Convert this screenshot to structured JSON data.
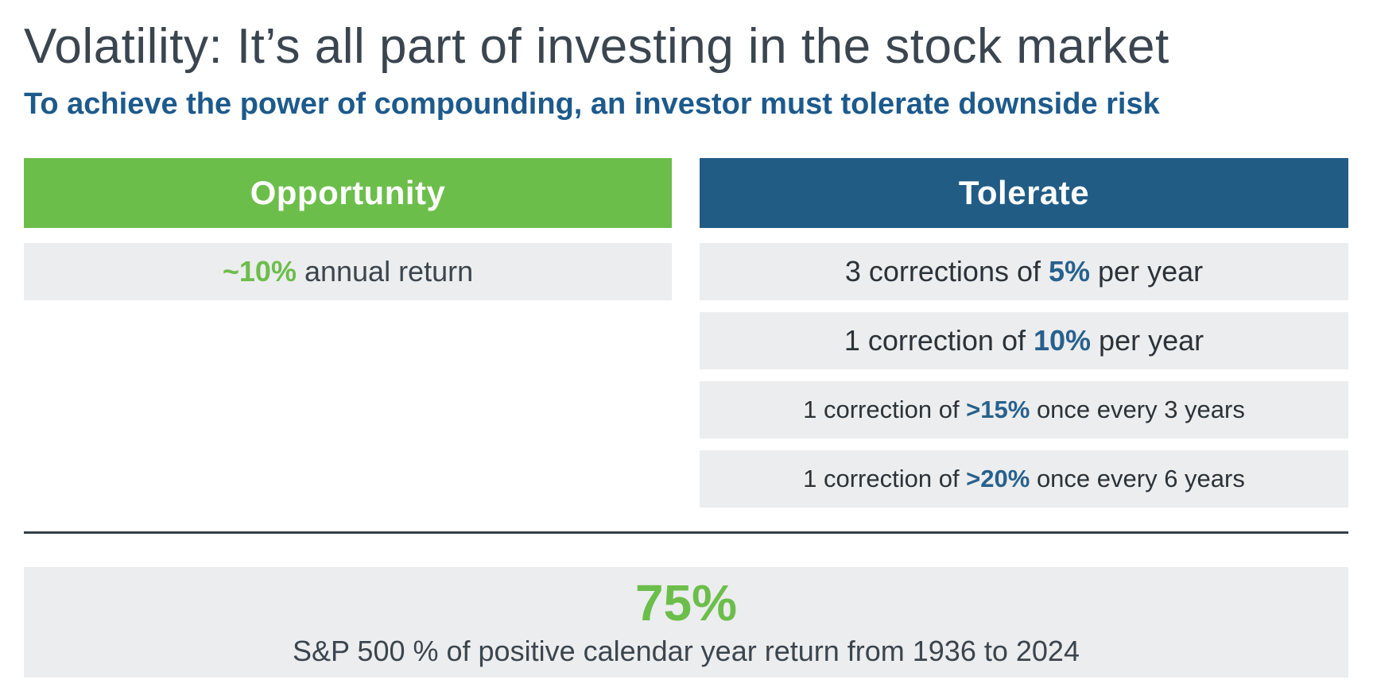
{
  "page": {
    "title": "Volatility: It’s all part of investing in the stock market",
    "subtitle": "To achieve the power of compounding, an investor must tolerate downside risk"
  },
  "columns": {
    "opportunity": {
      "header": "Opportunity",
      "rows": [
        {
          "prefix": "",
          "highlight": "~10%",
          "suffix": " annual return"
        }
      ]
    },
    "tolerate": {
      "header": "Tolerate",
      "rows": [
        {
          "prefix": "3 corrections of ",
          "highlight": "5%",
          "suffix": " per year"
        },
        {
          "prefix": "1 correction of ",
          "highlight": "10%",
          "suffix": " per year"
        },
        {
          "prefix": "1 correction of ",
          "highlight": ">15%",
          "suffix": " once every 3 years"
        },
        {
          "prefix": "1 correction of ",
          "highlight": ">20%",
          "suffix": " once every 6 years"
        }
      ]
    }
  },
  "summary": {
    "value": "75%",
    "caption": "S&P 500 % of positive calendar year return from 1936 to 2024"
  },
  "colors": {
    "accent_green": "#6CBE4B",
    "header_blue": "#215C85",
    "subtitle_blue": "#1D5A8C",
    "title_gray": "#3A454F",
    "row_background": "#ECEDEE",
    "divider": "#333F49"
  }
}
